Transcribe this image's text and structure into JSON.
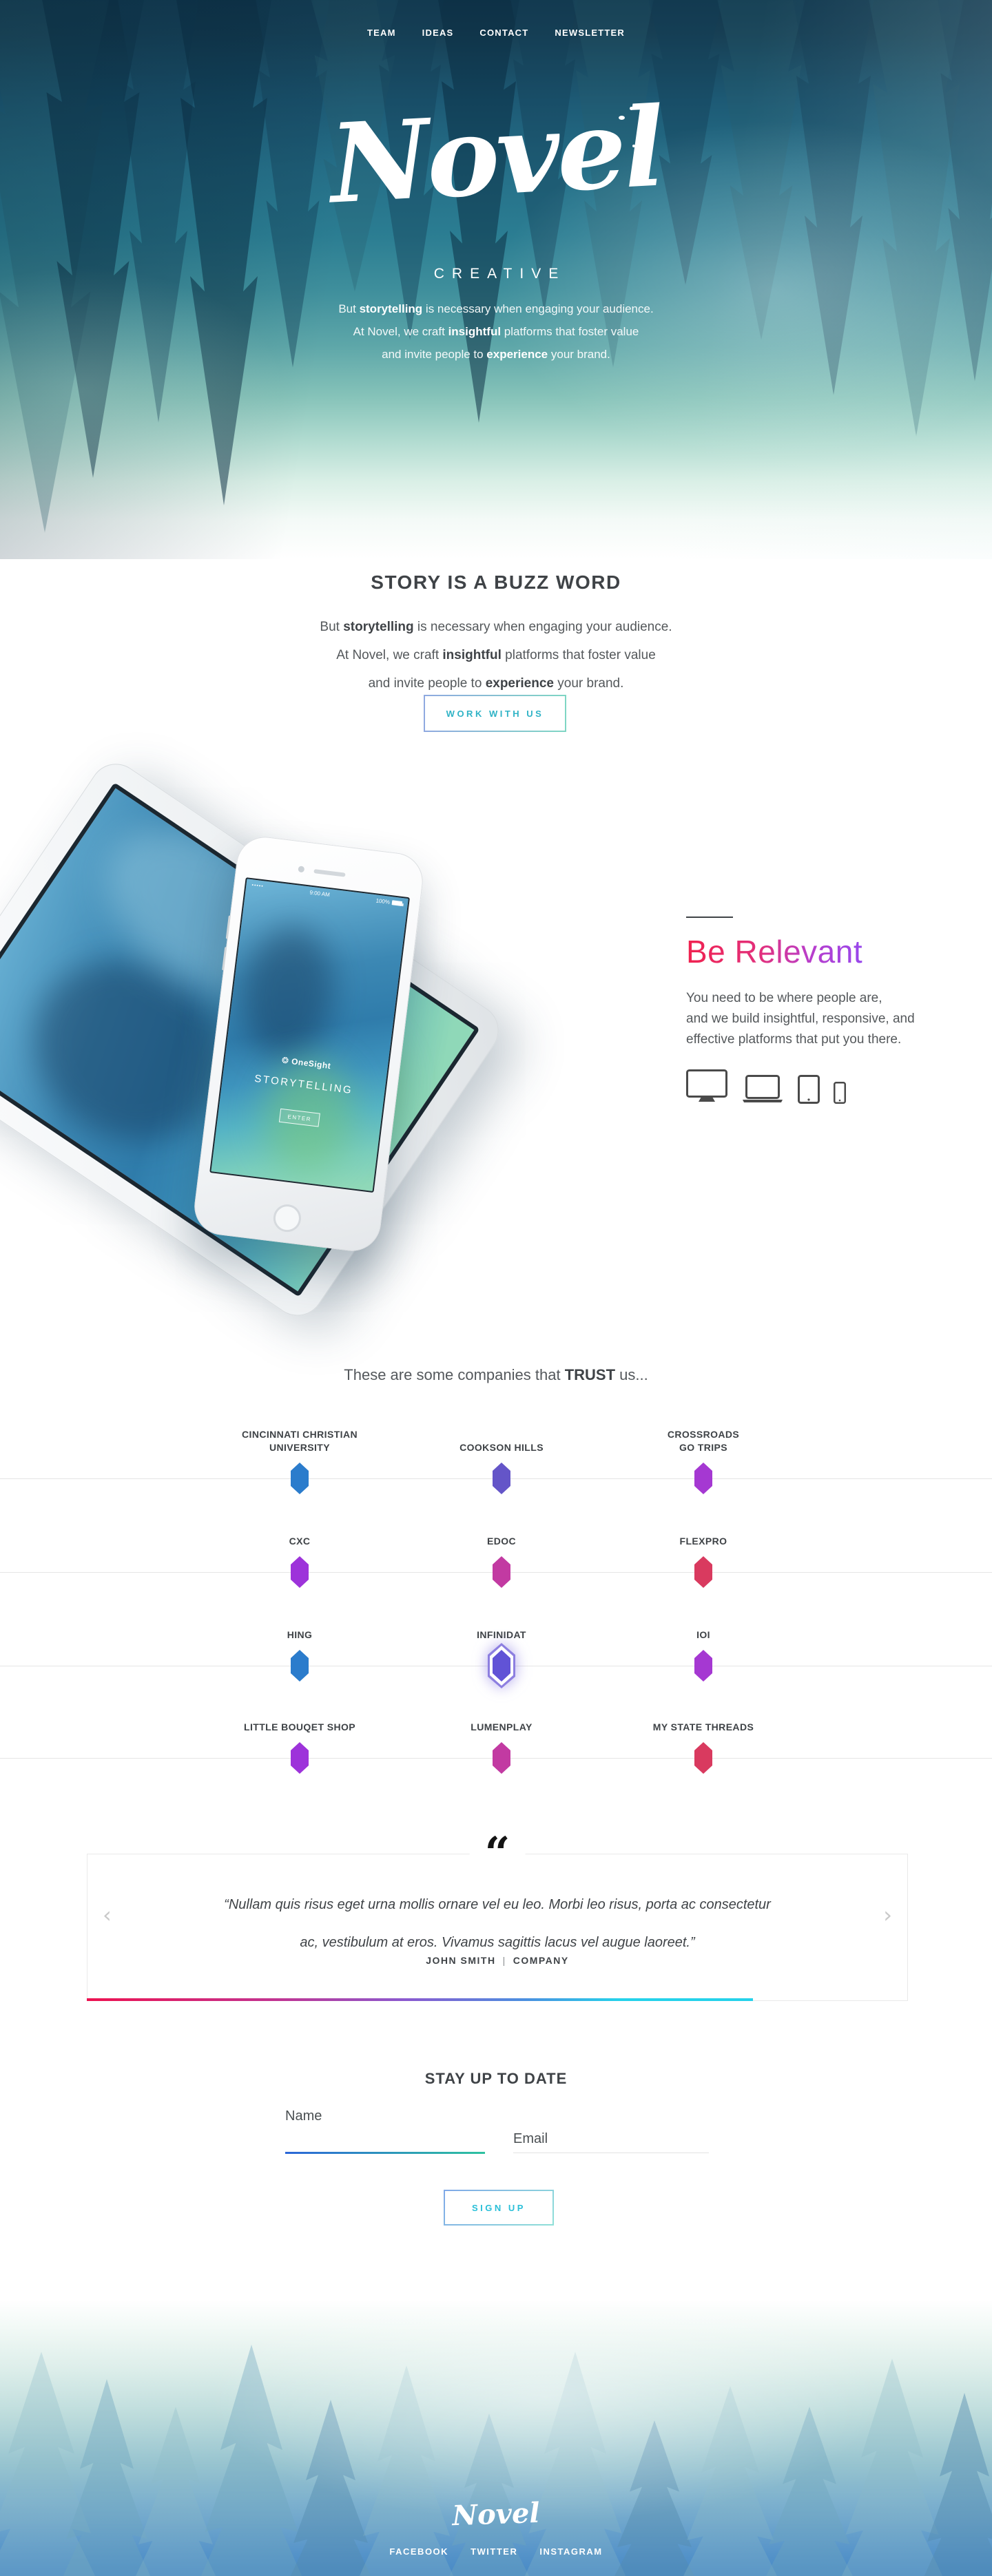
{
  "nav": {
    "items": [
      "TEAM",
      "IDEAS",
      "CONTACT",
      "NEWSLETTER"
    ]
  },
  "hero": {
    "brand": "Novel",
    "brand_sub": "CREATIVE",
    "tagline_lines": [
      [
        {
          "text": "But "
        },
        {
          "text": "storytelling",
          "bold": true
        },
        {
          "text": " is necessary when engaging your audience."
        }
      ],
      [
        {
          "text": "At Novel, we craft "
        },
        {
          "text": "insightful",
          "bold": true
        },
        {
          "text": " platforms that foster value"
        }
      ],
      [
        {
          "text": "and invite people to "
        },
        {
          "text": "experience",
          "bold": true
        },
        {
          "text": " your brand."
        }
      ]
    ]
  },
  "story": {
    "heading": "STORY IS A BUZZ WORD",
    "lines": [
      [
        {
          "text": "But "
        },
        {
          "text": "storytelling",
          "bold": true
        },
        {
          "text": " is necessary when engaging your audience."
        }
      ],
      [
        {
          "text": "At Novel, we craft "
        },
        {
          "text": "insightful",
          "bold": true
        },
        {
          "text": " platforms that foster value"
        }
      ],
      [
        {
          "text": "and invite people to "
        },
        {
          "text": "experience",
          "bold": true
        },
        {
          "text": " your brand."
        }
      ]
    ],
    "cta": "WORK WITH US"
  },
  "devices": {
    "screen_brand": "OneSight",
    "screen_brand_icon": "sun-icon",
    "screen_title": "STORYTELLING",
    "screen_button": "ENTER",
    "phone_time": "9:00 AM",
    "phone_battery": "100%",
    "phone_signal_dots": "•••••"
  },
  "relevant": {
    "heading": "Be Relevant",
    "lines": [
      "You need to be where people are,",
      "and we build insightful, responsive, and",
      "effective platforms that put you there."
    ],
    "icons": [
      "desktop-icon",
      "laptop-icon",
      "tablet-icon",
      "phone-icon"
    ]
  },
  "trust": {
    "heading_segments": [
      {
        "text": "These are some companies that "
      },
      {
        "text": "TRUST",
        "bold": true
      },
      {
        "text": " us..."
      }
    ],
    "companies": [
      {
        "name": "CINCINNATI CHRISTIAN\nUNIVERSITY",
        "color": "#2b7ccc",
        "selected": false
      },
      {
        "name": "COOKSON HILLS",
        "color": "#6455c8",
        "selected": false
      },
      {
        "name": "CROSSROADS\nGO TRIPS",
        "color": "#a538d2",
        "selected": false
      },
      {
        "name": "CXC",
        "color": "#9d33da",
        "selected": false
      },
      {
        "name": "EDOC",
        "color": "#c23aa2",
        "selected": false
      },
      {
        "name": "FLEXPRO",
        "color": "#d93a5f",
        "selected": false
      },
      {
        "name": "HING",
        "color": "#2b7ccc",
        "selected": false
      },
      {
        "name": "INFINIDAT",
        "color": "#6153d6",
        "selected": true
      },
      {
        "name": "IOI",
        "color": "#a538d2",
        "selected": false
      },
      {
        "name": "LITTLE BOUQET SHOP",
        "color": "#9d33da",
        "selected": false
      },
      {
        "name": "LUMENPLAY",
        "color": "#c23aa2",
        "selected": false
      },
      {
        "name": "MY STATE THREADS",
        "color": "#d93a5f",
        "selected": false
      }
    ]
  },
  "testimonial": {
    "quote_mark": "“",
    "quote_lines": [
      "“Nullam quis risus eget urna mollis ornare vel eu leo. Morbi leo risus, porta ac consectetur",
      "ac, vestibulum at eros. Vivamus sagittis lacus vel augue laoreet.”"
    ],
    "author": "JOHN SMITH",
    "separator": "|",
    "company": "COMPANY",
    "prev_arrow": "‹",
    "next_arrow": "›"
  },
  "newsletter": {
    "heading": "STAY UP TO DATE",
    "name_label": "Name",
    "email_label": "Email",
    "submit": "SIGN UP"
  },
  "footer": {
    "brand": "Novel",
    "links": [
      "FACEBOOK",
      "TWITTER",
      "INSTAGRAM"
    ]
  },
  "colors": {
    "cta_text": "#2fb3c6",
    "relevant_gradient": [
      "#f0224f",
      "#9747ec"
    ],
    "quote_bar_gradient": [
      "#ed1250",
      "#8a5ad0",
      "#25d2ea"
    ],
    "name_underline_gradient": [
      "#2b66d8",
      "#2ec2a0"
    ],
    "hero_top": "#173f54",
    "footer_bottom": "#4789c6"
  }
}
